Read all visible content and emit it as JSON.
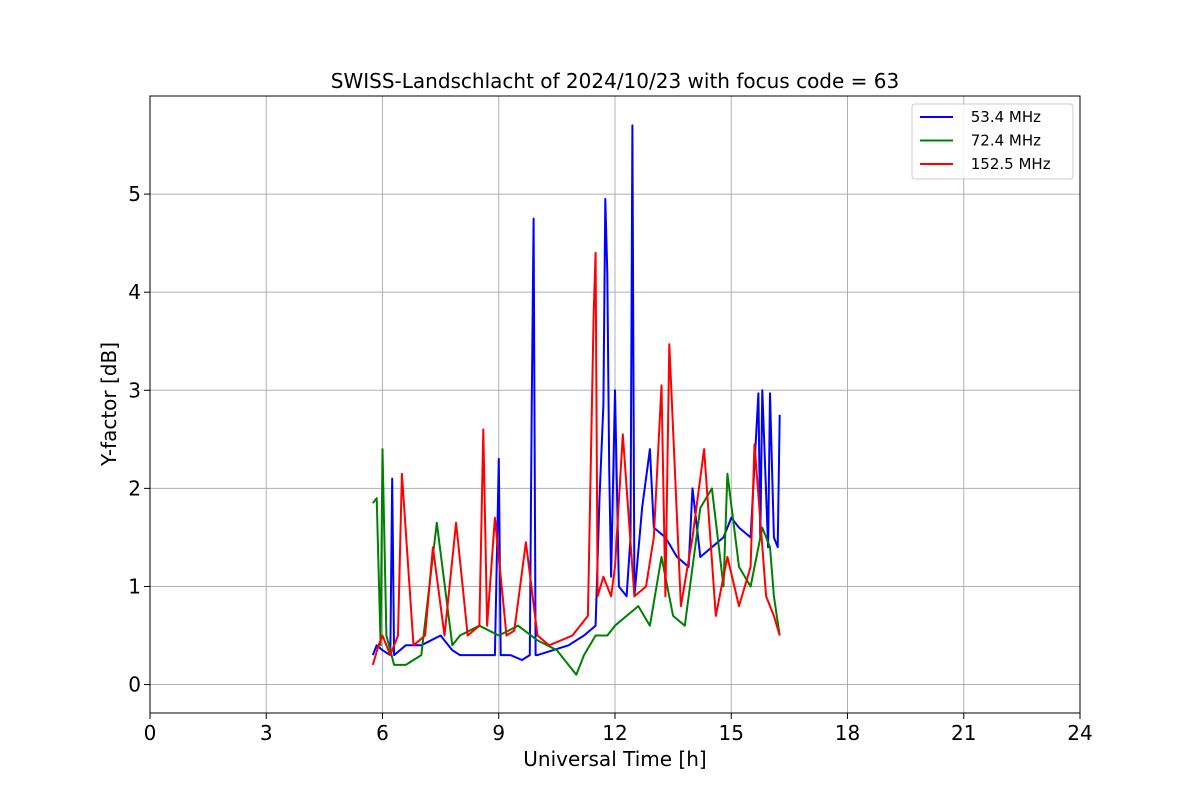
{
  "chart_data": {
    "type": "line",
    "title": "SWISS-Landschlacht of 2024/10/23 with focus code = 63",
    "xlabel": "Universal Time [h]",
    "ylabel": "Y-factor [dB]",
    "xlim": [
      0,
      24
    ],
    "ylim": [
      -0.29,
      6.0
    ],
    "x_ticks": [
      0,
      3,
      6,
      9,
      12,
      15,
      18,
      21,
      24
    ],
    "y_ticks": [
      0,
      1,
      2,
      3,
      4,
      5
    ],
    "grid": true,
    "legend_position": "top-right",
    "series": [
      {
        "name": " 53.4 MHz",
        "color": "#0000ff",
        "x": [
          5.75,
          5.85,
          6.0,
          6.2,
          6.25,
          6.3,
          6.6,
          7.0,
          7.5,
          7.8,
          8.0,
          8.5,
          8.9,
          9.0,
          9.05,
          9.3,
          9.6,
          9.8,
          9.85,
          9.9,
          9.95,
          10.0,
          10.4,
          10.8,
          11.2,
          11.5,
          11.6,
          11.7,
          11.75,
          11.8,
          11.85,
          11.9,
          12.0,
          12.1,
          12.3,
          12.4,
          12.45,
          12.5,
          12.7,
          12.9,
          13.0,
          13.3,
          13.6,
          13.9,
          14.0,
          14.2,
          14.5,
          14.8,
          15.0,
          15.2,
          15.5,
          15.7,
          15.75,
          15.8,
          15.95,
          16.0,
          16.1,
          16.2,
          16.25
        ],
        "y": [
          0.3,
          0.4,
          0.35,
          0.3,
          2.1,
          0.3,
          0.4,
          0.4,
          0.5,
          0.35,
          0.3,
          0.3,
          0.3,
          2.3,
          0.3,
          0.3,
          0.25,
          0.3,
          2.8,
          4.75,
          0.3,
          0.3,
          0.35,
          0.4,
          0.5,
          0.6,
          1.9,
          2.85,
          4.95,
          4.2,
          2.2,
          1.1,
          3.0,
          1.0,
          0.9,
          1.5,
          5.7,
          0.9,
          1.8,
          2.4,
          1.6,
          1.5,
          1.3,
          1.2,
          2.0,
          1.3,
          1.4,
          1.5,
          1.7,
          1.6,
          1.5,
          2.97,
          1.5,
          3.0,
          1.4,
          2.97,
          1.5,
          1.4,
          2.75
        ]
      },
      {
        "name": " 72.4 MHz",
        "color": "#008000",
        "x": [
          5.75,
          5.85,
          5.95,
          6.0,
          6.1,
          6.3,
          6.6,
          7.0,
          7.4,
          7.8,
          8.0,
          8.5,
          9.0,
          9.5,
          10.0,
          10.5,
          11.0,
          11.2,
          11.5,
          11.8,
          12.0,
          12.3,
          12.6,
          12.9,
          13.2,
          13.5,
          13.8,
          14.2,
          14.5,
          14.8,
          14.9,
          15.2,
          15.5,
          15.8,
          16.0,
          16.1,
          16.25
        ],
        "y": [
          1.85,
          1.9,
          0.4,
          2.4,
          0.5,
          0.2,
          0.2,
          0.3,
          1.65,
          0.4,
          0.5,
          0.6,
          0.5,
          0.6,
          0.45,
          0.35,
          0.1,
          0.3,
          0.5,
          0.5,
          0.6,
          0.7,
          0.8,
          0.6,
          1.3,
          0.7,
          0.6,
          1.8,
          2.0,
          1.0,
          2.15,
          1.2,
          1.0,
          1.6,
          1.4,
          0.9,
          0.5
        ]
      },
      {
        "name": " 152.5 MHz",
        "color": "#ff0000",
        "x": [
          5.75,
          5.9,
          6.0,
          6.2,
          6.4,
          6.5,
          6.8,
          7.1,
          7.3,
          7.6,
          7.9,
          8.2,
          8.5,
          8.6,
          8.7,
          8.9,
          9.2,
          9.4,
          9.7,
          10.0,
          10.3,
          10.6,
          10.9,
          11.1,
          11.3,
          11.45,
          11.5,
          11.55,
          11.7,
          11.9,
          12.0,
          12.2,
          12.5,
          12.8,
          13.0,
          13.2,
          13.3,
          13.4,
          13.7,
          14.0,
          14.3,
          14.6,
          14.9,
          15.2,
          15.5,
          15.6,
          15.9,
          16.1,
          16.25
        ],
        "y": [
          0.2,
          0.4,
          0.5,
          0.3,
          0.5,
          2.15,
          0.4,
          0.5,
          1.4,
          0.5,
          1.65,
          0.5,
          0.6,
          2.6,
          0.6,
          1.7,
          0.5,
          0.55,
          1.45,
          0.5,
          0.4,
          0.45,
          0.5,
          0.6,
          0.7,
          3.8,
          4.4,
          0.9,
          1.1,
          0.9,
          1.2,
          2.55,
          0.9,
          1.0,
          1.5,
          3.05,
          0.9,
          3.47,
          0.8,
          1.5,
          2.4,
          0.7,
          1.3,
          0.8,
          1.2,
          2.45,
          0.9,
          0.7,
          0.5
        ]
      }
    ]
  }
}
